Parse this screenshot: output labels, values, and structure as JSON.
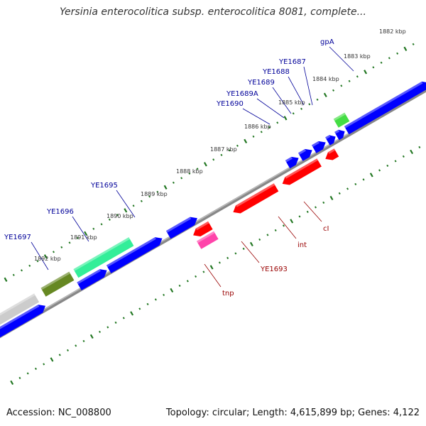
{
  "title": "Yersinia enterocolitica subsp. enterocolitica 8081, complete...",
  "footer": {
    "accession": "Accession: NC_008800",
    "summary": "Topology: circular; Length: 4,615,899 bp; Genes: 4,122"
  },
  "ruler_labels": [
    "1882 kbp",
    "1883 kbp",
    "1884 kbp",
    "1885 kbp",
    "1886 kbp",
    "1887 kbp",
    "1888 kbp",
    "1889 kbp",
    "1890 kbp",
    "1891 kbp",
    "1892 kbp"
  ],
  "forward_gene_labels": [
    "gpA",
    "YE1687",
    "YE1688",
    "YE1689",
    "YE1689A",
    "YE1690",
    "YE1695",
    "YE1696",
    "YE1697"
  ],
  "reverse_gene_labels": [
    "cI",
    "int",
    "YE1693",
    "tnp"
  ],
  "colors": {
    "forward_gene": "#0000ff",
    "reverse_gene": "#ff0000",
    "forward_label": "#000099",
    "reverse_label": "#990000",
    "tick": "#227722",
    "backbone": "#888888",
    "highlight_green": "#44dd44",
    "aqua_gene": "#33ee99",
    "olive_gene": "#668822",
    "grey_gene": "#cccccc",
    "magenta_gene": "#ff44aa"
  }
}
